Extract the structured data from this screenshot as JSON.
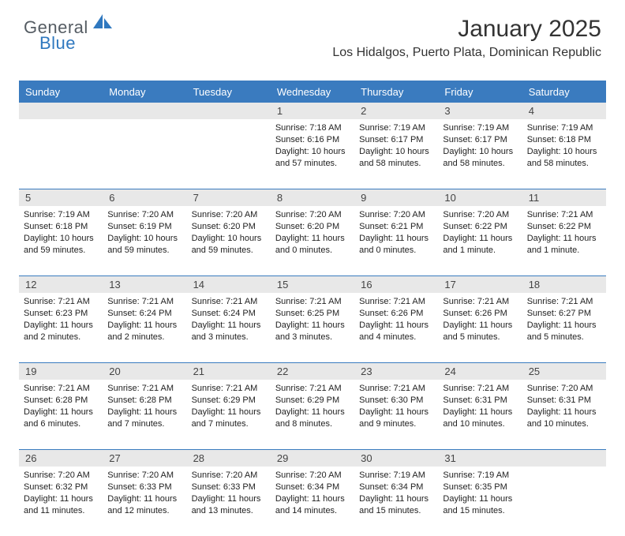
{
  "logo": {
    "text1": "General",
    "text2": "Blue"
  },
  "title": "January 2025",
  "location": "Los Hidalgos, Puerto Plata, Dominican Republic",
  "colors": {
    "header_bg": "#3a7bbf",
    "header_text": "#ffffff",
    "daynum_bg": "#e8e8e8",
    "text": "#222222",
    "logo_gray": "#555c63",
    "logo_blue": "#2f78bf",
    "background": "#ffffff"
  },
  "typography": {
    "title_fontsize": 30,
    "location_fontsize": 16,
    "header_fontsize": 13,
    "daynum_fontsize": 13,
    "detail_fontsize": 11
  },
  "days_of_week": [
    "Sunday",
    "Monday",
    "Tuesday",
    "Wednesday",
    "Thursday",
    "Friday",
    "Saturday"
  ],
  "weeks": [
    [
      {
        "n": "",
        "sunrise": "",
        "sunset": "",
        "daylight1": "",
        "daylight2": ""
      },
      {
        "n": "",
        "sunrise": "",
        "sunset": "",
        "daylight1": "",
        "daylight2": ""
      },
      {
        "n": "",
        "sunrise": "",
        "sunset": "",
        "daylight1": "",
        "daylight2": ""
      },
      {
        "n": "1",
        "sunrise": "Sunrise: 7:18 AM",
        "sunset": "Sunset: 6:16 PM",
        "daylight1": "Daylight: 10 hours",
        "daylight2": "and 57 minutes."
      },
      {
        "n": "2",
        "sunrise": "Sunrise: 7:19 AM",
        "sunset": "Sunset: 6:17 PM",
        "daylight1": "Daylight: 10 hours",
        "daylight2": "and 58 minutes."
      },
      {
        "n": "3",
        "sunrise": "Sunrise: 7:19 AM",
        "sunset": "Sunset: 6:17 PM",
        "daylight1": "Daylight: 10 hours",
        "daylight2": "and 58 minutes."
      },
      {
        "n": "4",
        "sunrise": "Sunrise: 7:19 AM",
        "sunset": "Sunset: 6:18 PM",
        "daylight1": "Daylight: 10 hours",
        "daylight2": "and 58 minutes."
      }
    ],
    [
      {
        "n": "5",
        "sunrise": "Sunrise: 7:19 AM",
        "sunset": "Sunset: 6:18 PM",
        "daylight1": "Daylight: 10 hours",
        "daylight2": "and 59 minutes."
      },
      {
        "n": "6",
        "sunrise": "Sunrise: 7:20 AM",
        "sunset": "Sunset: 6:19 PM",
        "daylight1": "Daylight: 10 hours",
        "daylight2": "and 59 minutes."
      },
      {
        "n": "7",
        "sunrise": "Sunrise: 7:20 AM",
        "sunset": "Sunset: 6:20 PM",
        "daylight1": "Daylight: 10 hours",
        "daylight2": "and 59 minutes."
      },
      {
        "n": "8",
        "sunrise": "Sunrise: 7:20 AM",
        "sunset": "Sunset: 6:20 PM",
        "daylight1": "Daylight: 11 hours",
        "daylight2": "and 0 minutes."
      },
      {
        "n": "9",
        "sunrise": "Sunrise: 7:20 AM",
        "sunset": "Sunset: 6:21 PM",
        "daylight1": "Daylight: 11 hours",
        "daylight2": "and 0 minutes."
      },
      {
        "n": "10",
        "sunrise": "Sunrise: 7:20 AM",
        "sunset": "Sunset: 6:22 PM",
        "daylight1": "Daylight: 11 hours",
        "daylight2": "and 1 minute."
      },
      {
        "n": "11",
        "sunrise": "Sunrise: 7:21 AM",
        "sunset": "Sunset: 6:22 PM",
        "daylight1": "Daylight: 11 hours",
        "daylight2": "and 1 minute."
      }
    ],
    [
      {
        "n": "12",
        "sunrise": "Sunrise: 7:21 AM",
        "sunset": "Sunset: 6:23 PM",
        "daylight1": "Daylight: 11 hours",
        "daylight2": "and 2 minutes."
      },
      {
        "n": "13",
        "sunrise": "Sunrise: 7:21 AM",
        "sunset": "Sunset: 6:24 PM",
        "daylight1": "Daylight: 11 hours",
        "daylight2": "and 2 minutes."
      },
      {
        "n": "14",
        "sunrise": "Sunrise: 7:21 AM",
        "sunset": "Sunset: 6:24 PM",
        "daylight1": "Daylight: 11 hours",
        "daylight2": "and 3 minutes."
      },
      {
        "n": "15",
        "sunrise": "Sunrise: 7:21 AM",
        "sunset": "Sunset: 6:25 PM",
        "daylight1": "Daylight: 11 hours",
        "daylight2": "and 3 minutes."
      },
      {
        "n": "16",
        "sunrise": "Sunrise: 7:21 AM",
        "sunset": "Sunset: 6:26 PM",
        "daylight1": "Daylight: 11 hours",
        "daylight2": "and 4 minutes."
      },
      {
        "n": "17",
        "sunrise": "Sunrise: 7:21 AM",
        "sunset": "Sunset: 6:26 PM",
        "daylight1": "Daylight: 11 hours",
        "daylight2": "and 5 minutes."
      },
      {
        "n": "18",
        "sunrise": "Sunrise: 7:21 AM",
        "sunset": "Sunset: 6:27 PM",
        "daylight1": "Daylight: 11 hours",
        "daylight2": "and 5 minutes."
      }
    ],
    [
      {
        "n": "19",
        "sunrise": "Sunrise: 7:21 AM",
        "sunset": "Sunset: 6:28 PM",
        "daylight1": "Daylight: 11 hours",
        "daylight2": "and 6 minutes."
      },
      {
        "n": "20",
        "sunrise": "Sunrise: 7:21 AM",
        "sunset": "Sunset: 6:28 PM",
        "daylight1": "Daylight: 11 hours",
        "daylight2": "and 7 minutes."
      },
      {
        "n": "21",
        "sunrise": "Sunrise: 7:21 AM",
        "sunset": "Sunset: 6:29 PM",
        "daylight1": "Daylight: 11 hours",
        "daylight2": "and 7 minutes."
      },
      {
        "n": "22",
        "sunrise": "Sunrise: 7:21 AM",
        "sunset": "Sunset: 6:29 PM",
        "daylight1": "Daylight: 11 hours",
        "daylight2": "and 8 minutes."
      },
      {
        "n": "23",
        "sunrise": "Sunrise: 7:21 AM",
        "sunset": "Sunset: 6:30 PM",
        "daylight1": "Daylight: 11 hours",
        "daylight2": "and 9 minutes."
      },
      {
        "n": "24",
        "sunrise": "Sunrise: 7:21 AM",
        "sunset": "Sunset: 6:31 PM",
        "daylight1": "Daylight: 11 hours",
        "daylight2": "and 10 minutes."
      },
      {
        "n": "25",
        "sunrise": "Sunrise: 7:20 AM",
        "sunset": "Sunset: 6:31 PM",
        "daylight1": "Daylight: 11 hours",
        "daylight2": "and 10 minutes."
      }
    ],
    [
      {
        "n": "26",
        "sunrise": "Sunrise: 7:20 AM",
        "sunset": "Sunset: 6:32 PM",
        "daylight1": "Daylight: 11 hours",
        "daylight2": "and 11 minutes."
      },
      {
        "n": "27",
        "sunrise": "Sunrise: 7:20 AM",
        "sunset": "Sunset: 6:33 PM",
        "daylight1": "Daylight: 11 hours",
        "daylight2": "and 12 minutes."
      },
      {
        "n": "28",
        "sunrise": "Sunrise: 7:20 AM",
        "sunset": "Sunset: 6:33 PM",
        "daylight1": "Daylight: 11 hours",
        "daylight2": "and 13 minutes."
      },
      {
        "n": "29",
        "sunrise": "Sunrise: 7:20 AM",
        "sunset": "Sunset: 6:34 PM",
        "daylight1": "Daylight: 11 hours",
        "daylight2": "and 14 minutes."
      },
      {
        "n": "30",
        "sunrise": "Sunrise: 7:19 AM",
        "sunset": "Sunset: 6:34 PM",
        "daylight1": "Daylight: 11 hours",
        "daylight2": "and 15 minutes."
      },
      {
        "n": "31",
        "sunrise": "Sunrise: 7:19 AM",
        "sunset": "Sunset: 6:35 PM",
        "daylight1": "Daylight: 11 hours",
        "daylight2": "and 15 minutes."
      },
      {
        "n": "",
        "sunrise": "",
        "sunset": "",
        "daylight1": "",
        "daylight2": ""
      }
    ]
  ]
}
